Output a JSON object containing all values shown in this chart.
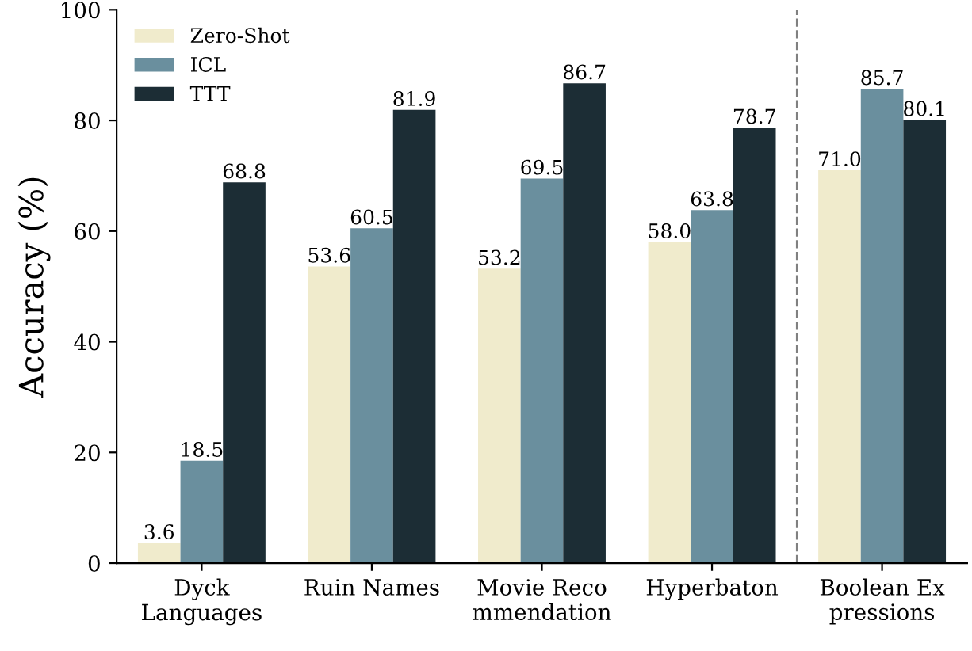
{
  "chart_data": {
    "type": "bar",
    "ylabel": "Accuracy (%)",
    "categories": [
      "Dyck\nLanguages",
      "Ruin Names",
      "Movie Reco\nmmendation",
      "Hyperbaton",
      "Boolean Ex\npressions"
    ],
    "series": [
      {
        "name": "Zero-Shot",
        "color": "#f0ebcc",
        "values": [
          3.6,
          53.6,
          53.2,
          58.0,
          71.0
        ],
        "value_labels": [
          "3.6",
          "53.6",
          "53.2",
          "58.0",
          "71.0"
        ]
      },
      {
        "name": "ICL",
        "color": "#6a8f9e",
        "values": [
          18.5,
          60.5,
          69.5,
          63.8,
          85.7
        ],
        "value_labels": [
          "18.5",
          "60.5",
          "69.5",
          "63.8",
          "85.7"
        ]
      },
      {
        "name": "TTT",
        "color": "#1c2d35",
        "values": [
          68.8,
          81.9,
          86.7,
          78.7,
          80.1
        ],
        "value_labels": [
          "68.8",
          "81.9",
          "86.7",
          "78.7",
          "80.1"
        ]
      }
    ],
    "ylim": [
      0,
      100
    ],
    "yticks": [
      0,
      20,
      40,
      60,
      80,
      100
    ],
    "legend": "top left",
    "grid": false
  }
}
